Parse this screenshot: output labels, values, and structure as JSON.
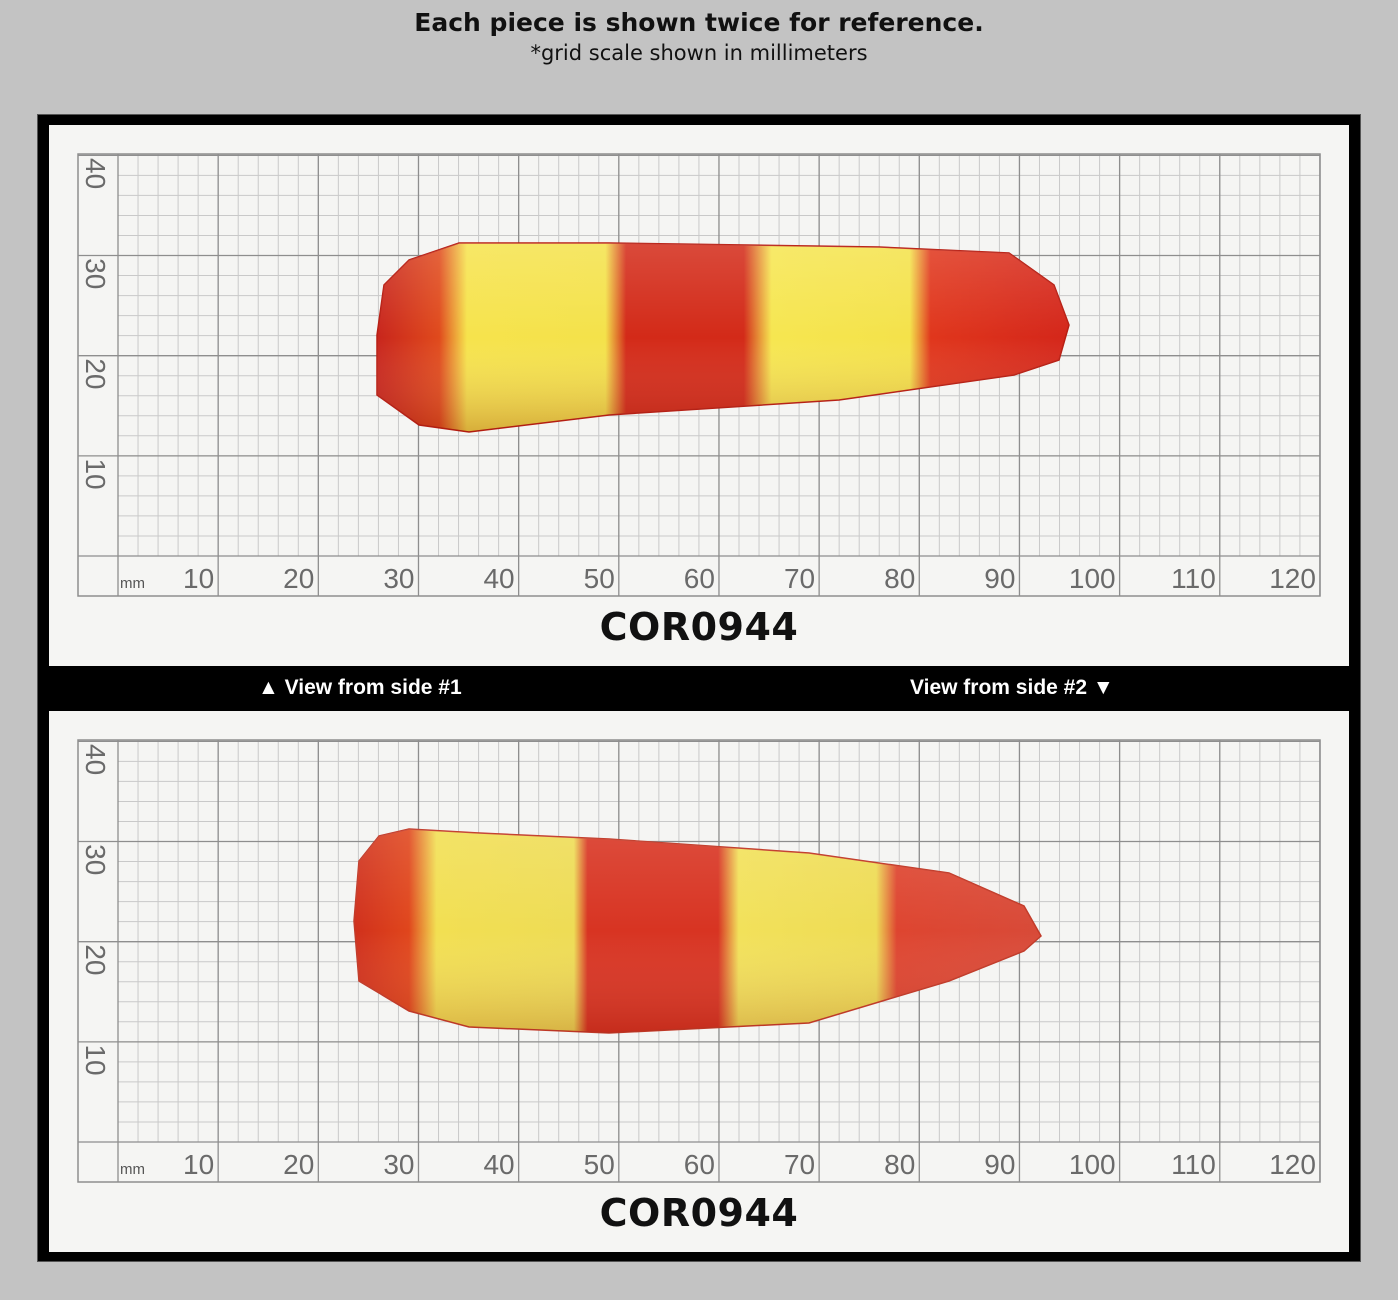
{
  "header": {
    "title": "Each piece is shown twice for reference.",
    "subtitle": "*grid scale shown in millimeters"
  },
  "panels": [
    {
      "code": "COR0944"
    },
    {
      "code": "COR0944"
    }
  ],
  "labels": {
    "side1": "▲ View from side #1",
    "side2": "View from side #2 ▼"
  },
  "grid": {
    "unit": "mm",
    "x_ticks": [
      "10",
      "20",
      "30",
      "40",
      "50",
      "60",
      "70",
      "80",
      "90",
      "100",
      "110",
      "120"
    ],
    "y_ticks": [
      "40",
      "30",
      "20",
      "10"
    ]
  },
  "colors": {
    "background": "#c3c3c3",
    "frame": "#000000",
    "grid": "#9a9a9a",
    "gem_red": "#d4261a",
    "gem_yellow": "#f4e24a"
  }
}
